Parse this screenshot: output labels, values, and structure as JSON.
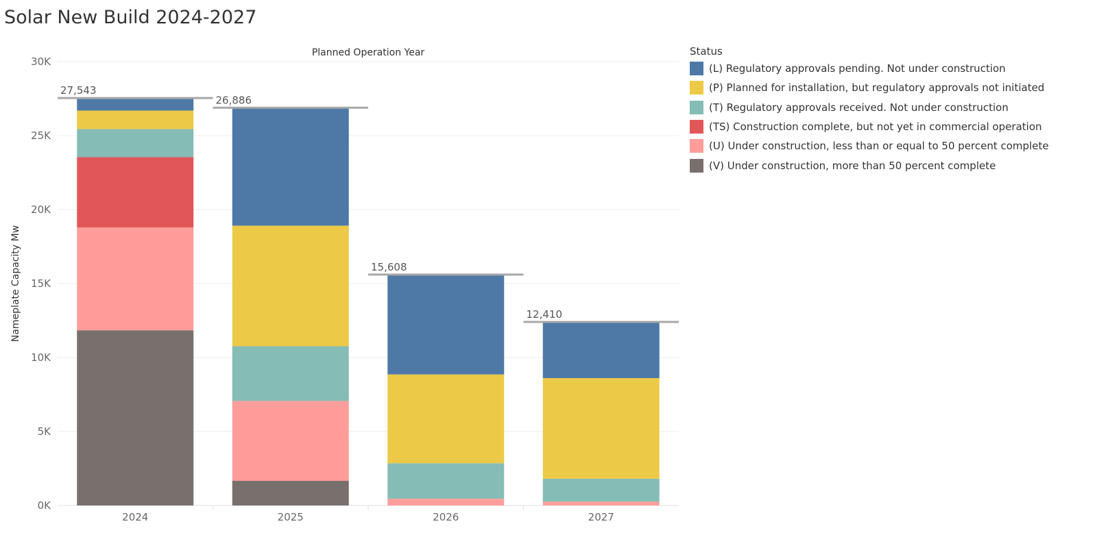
{
  "title": "Solar New Build 2024-2027",
  "chart_data": {
    "type": "bar",
    "stacked": true,
    "title": "Solar New Build 2024-2027",
    "xlabel": "Planned Operation Year",
    "ylabel": "Nameplate Capacity Mw",
    "ylim": [
      0,
      30000
    ],
    "ytick_values": [
      0,
      5000,
      10000,
      15000,
      20000,
      25000,
      30000
    ],
    "ytick_labels": [
      "0K",
      "5K",
      "10K",
      "15K",
      "20K",
      "25K",
      "30K"
    ],
    "categories": [
      "2024",
      "2025",
      "2026",
      "2027"
    ],
    "totals": [
      27543,
      26886,
      15608,
      12410
    ],
    "total_labels": [
      "27,543",
      "26,886",
      "15,608",
      "12,410"
    ],
    "legend_title": "Status",
    "legend_position": "right",
    "grid": true,
    "series": [
      {
        "name": "(L) Regulatory approvals pending. Not under construction",
        "color": "#4e79a7",
        "values": [
          850,
          7970,
          6750,
          3800
        ]
      },
      {
        "name": "(P) Planned for installation, but regulatory approvals not initiated",
        "color": "#edc948",
        "values": [
          1250,
          8150,
          6000,
          6800
        ]
      },
      {
        "name": "(T) Regulatory approvals received. Not under construction",
        "color": "#86bcb6",
        "values": [
          1900,
          3700,
          2400,
          1550
        ]
      },
      {
        "name": "(TS) Construction complete, but not yet in commercial operation",
        "color": "#e15759",
        "values": [
          4750,
          0,
          0,
          0
        ]
      },
      {
        "name": "(U) Under construction, less than or equal to 50 percent complete",
        "color": "#ff9d9a",
        "values": [
          6950,
          5400,
          458,
          260
        ]
      },
      {
        "name": "(V) Under construction, more than 50 percent complete",
        "color": "#79706e",
        "values": [
          11843,
          1666,
          0,
          0
        ]
      }
    ],
    "stack_order_bottom_to_top": [
      "(V) Under construction, more than 50 percent complete",
      "(U) Under construction, less than or equal to 50 percent complete",
      "(TS) Construction complete, but not yet in commercial operation",
      "(T) Regulatory approvals received. Not under construction",
      "(P) Planned for installation, but regulatory approvals not initiated",
      "(L) Regulatory approvals pending. Not under construction"
    ]
  }
}
